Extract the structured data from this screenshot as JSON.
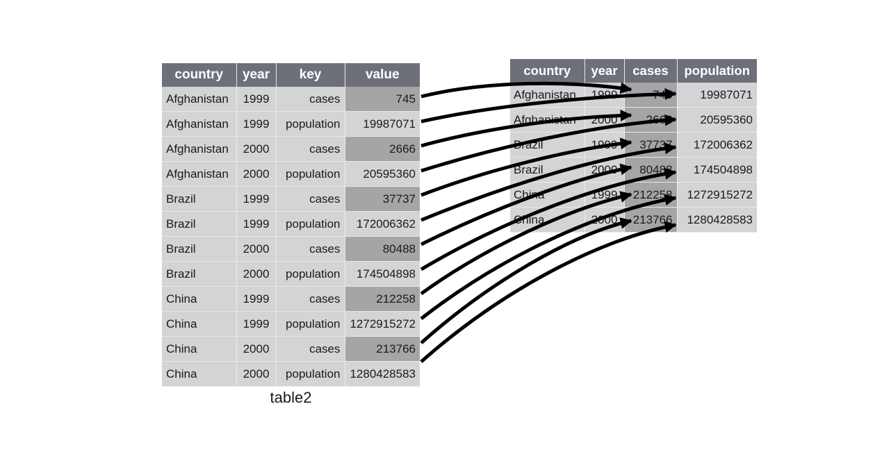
{
  "left_table": {
    "caption": "table2",
    "columns": [
      "country",
      "year",
      "key",
      "value"
    ],
    "rows": [
      [
        "Afghanistan",
        "1999",
        "cases",
        "745"
      ],
      [
        "Afghanistan",
        "1999",
        "population",
        "19987071"
      ],
      [
        "Afghanistan",
        "2000",
        "cases",
        "2666"
      ],
      [
        "Afghanistan",
        "2000",
        "population",
        "20595360"
      ],
      [
        "Brazil",
        "1999",
        "cases",
        "37737"
      ],
      [
        "Brazil",
        "1999",
        "population",
        "172006362"
      ],
      [
        "Brazil",
        "2000",
        "cases",
        "80488"
      ],
      [
        "Brazil",
        "2000",
        "population",
        "174504898"
      ],
      [
        "China",
        "1999",
        "cases",
        "212258"
      ],
      [
        "China",
        "1999",
        "population",
        "1272915272"
      ],
      [
        "China",
        "2000",
        "cases",
        "213766"
      ],
      [
        "China",
        "2000",
        "population",
        "1280428583"
      ]
    ]
  },
  "right_table": {
    "columns": [
      "country",
      "year",
      "cases",
      "population"
    ],
    "rows": [
      [
        "Afghanistan",
        "1999",
        "745",
        "19987071"
      ],
      [
        "Afghanistan",
        "2000",
        "2666",
        "20595360"
      ],
      [
        "Brazil",
        "1999",
        "37737",
        "172006362"
      ],
      [
        "Brazil",
        "2000",
        "80488",
        "174504898"
      ],
      [
        "China",
        "1999",
        "212258",
        "1272915272"
      ],
      [
        "China",
        "2000",
        "213766",
        "1280428583"
      ]
    ]
  },
  "colors": {
    "header_bg": "#6e7079",
    "cell_bg": "#d3d4d6",
    "highlight_bg": "#a5a5a7",
    "arrow": "#000000"
  }
}
